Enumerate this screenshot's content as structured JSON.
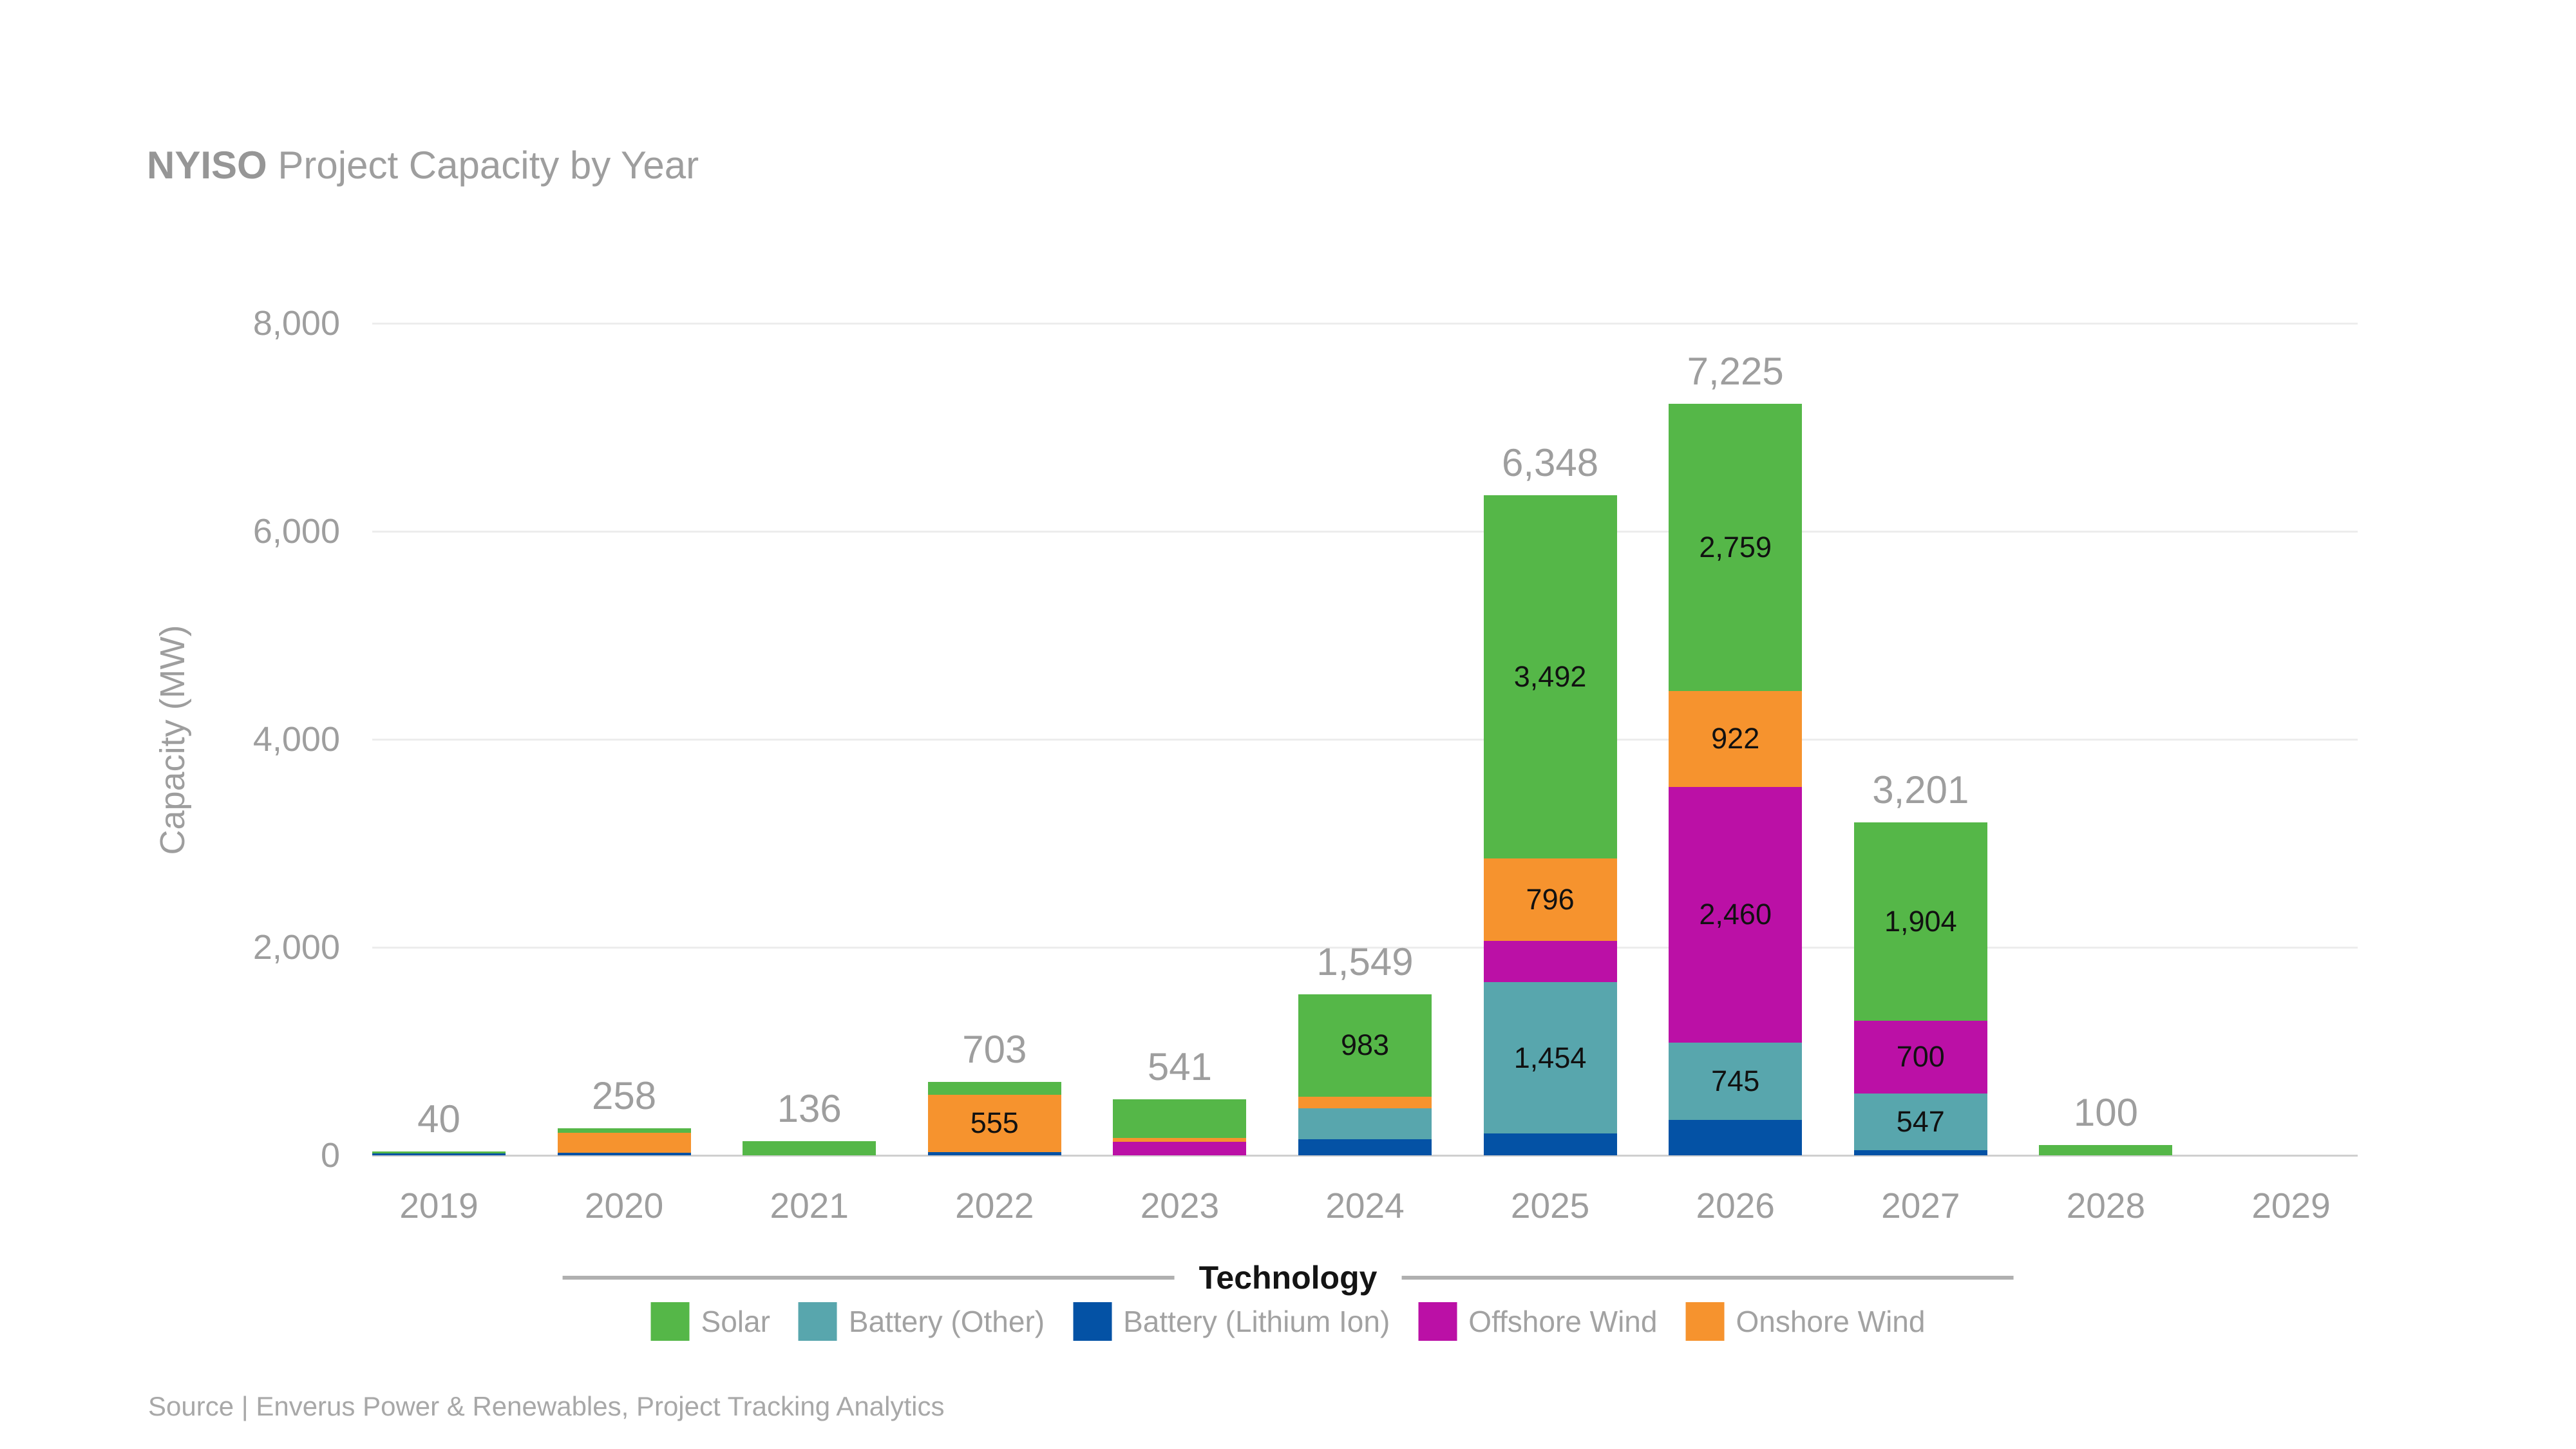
{
  "title": {
    "prefix": "NYISO",
    "rest": " Project Capacity by Year"
  },
  "source_note": "Source | Enverus Power & Renewables, Project Tracking Analytics",
  "colors": {
    "solar": "#55b748",
    "battery_other": "#58a6ad",
    "battery_lithium_ion": "#0452a5",
    "offshore_wind": "#bb10a6",
    "onshore_wind": "#f6932e",
    "axis_text": "#9e9e9e",
    "segment_label_text": "#111111",
    "gridline": "#ededed",
    "axis_line": "#cfcfcf",
    "legend_rule": "#b0b0b0"
  },
  "chart_data": {
    "type": "bar",
    "stacked": true,
    "title": "NYISO Project Capacity by Year",
    "ylabel": "Capacity (MW)",
    "legend_title": "Technology",
    "ylim": [
      0,
      8000
    ],
    "yticks": [
      0,
      2000,
      4000,
      6000,
      8000
    ],
    "ytick_labels": [
      "0",
      "2,000",
      "4,000",
      "6,000",
      "8,000"
    ],
    "grid": "horizontal",
    "legend_position": "bottom",
    "categories": [
      "2019",
      "2020",
      "2021",
      "2022",
      "2023",
      "2024",
      "2025",
      "2026",
      "2027",
      "2028",
      "2029"
    ],
    "totals": [
      40,
      258,
      136,
      703,
      541,
      1549,
      6348,
      7225,
      3201,
      100,
      0
    ],
    "segment_label_min": 500,
    "series": [
      {
        "name": "Battery (Lithium Ion)",
        "color": "#0452a5",
        "values": [
          20,
          25,
          0,
          30,
          0,
          155,
          210,
          339,
          50,
          0,
          0
        ]
      },
      {
        "name": "Battery (Other)",
        "color": "#58a6ad",
        "values": [
          0,
          0,
          0,
          0,
          0,
          296,
          1454,
          745,
          547,
          0,
          0
        ]
      },
      {
        "name": "Offshore Wind",
        "color": "#bb10a6",
        "values": [
          0,
          0,
          0,
          0,
          127,
          0,
          396,
          2460,
          700,
          0,
          0
        ]
      },
      {
        "name": "Onshore Wind",
        "color": "#f6932e",
        "values": [
          0,
          190,
          0,
          555,
          42,
          115,
          796,
          922,
          0,
          0,
          0
        ]
      },
      {
        "name": "Solar",
        "color": "#55b748",
        "values": [
          20,
          43,
          136,
          118,
          372,
          983,
          3492,
          2759,
          1904,
          100,
          0
        ]
      }
    ],
    "legend": [
      {
        "label": "Solar",
        "color": "#55b748"
      },
      {
        "label": "Battery (Other)",
        "color": "#58a6ad"
      },
      {
        "label": "Battery (Lithium Ion)",
        "color": "#0452a5"
      },
      {
        "label": "Offshore Wind",
        "color": "#bb10a6"
      },
      {
        "label": "Onshore Wind",
        "color": "#f6932e"
      }
    ]
  }
}
